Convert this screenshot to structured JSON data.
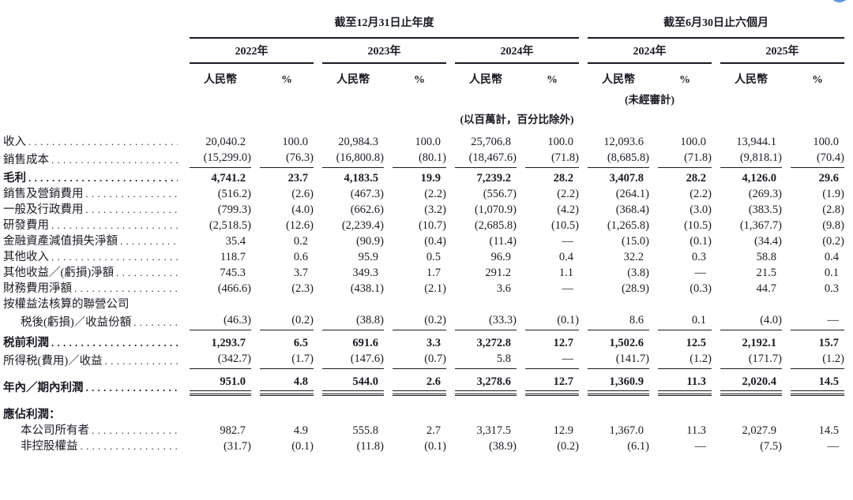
{
  "page": {
    "background": "#ffffff",
    "text_color": "#1a1a24",
    "accent_blue": "#5a96dd"
  },
  "table": {
    "col_groups": [
      {
        "period": "截至12月31日止年度",
        "years": [
          "2022年",
          "2023年",
          "2024年"
        ]
      },
      {
        "period": "截至6月30日止六個月",
        "years": [
          "2024年",
          "2025年"
        ]
      }
    ],
    "sub_headers": {
      "currency": "人民幣",
      "percent": "%"
    },
    "unaudited_note": "(未經審計)",
    "unit_note": "(以百萬計，百分比除外)",
    "rows": [
      {
        "label": "收入",
        "values": [
          "20,040.2",
          "100.0",
          "20,984.3",
          "100.0",
          "25,706.8",
          "100.0",
          "12,093.6",
          "100.0",
          "13,944.1",
          "100.0"
        ]
      },
      {
        "label": "銷售成本",
        "rule_below": "single",
        "values": [
          "(15,299.0)",
          "(76.3)",
          "(16,800.8)",
          "(80.1)",
          "(18,467.6)",
          "(71.8)",
          "(8,685.8)",
          "(71.8)",
          "(9,818.1)",
          "(70.4)"
        ]
      },
      {
        "label": "毛利",
        "style": "bold",
        "gap_above": 3,
        "values": [
          "4,741.2",
          "23.7",
          "4,183.5",
          "19.9",
          "7,239.2",
          "28.2",
          "3,407.8",
          "28.2",
          "4,126.0",
          "29.6"
        ]
      },
      {
        "label": "銷售及營銷費用",
        "values": [
          "(516.2)",
          "(2.6)",
          "(467.3)",
          "(2.2)",
          "(556.7)",
          "(2.2)",
          "(264.1)",
          "(2.2)",
          "(269.3)",
          "(1.9)"
        ]
      },
      {
        "label": "一般及行政費用",
        "values": [
          "(799.3)",
          "(4.0)",
          "(662.6)",
          "(3.2)",
          "(1,070.9)",
          "(4.2)",
          "(368.4)",
          "(3.0)",
          "(383.5)",
          "(2.8)"
        ]
      },
      {
        "label": "研發費用",
        "values": [
          "(2,518.5)",
          "(12.6)",
          "(2,239.4)",
          "(10.7)",
          "(2,685.8)",
          "(10.5)",
          "(1,265.8)",
          "(10.5)",
          "(1,367.7)",
          "(9.8)"
        ]
      },
      {
        "label": "金融資產減值損失淨額",
        "values": [
          "35.4",
          "0.2",
          "(90.9)",
          "(0.4)",
          "(11.4)",
          "—",
          "(15.0)",
          "(0.1)",
          "(34.4)",
          "(0.2)"
        ]
      },
      {
        "label": "其他收入",
        "values": [
          "118.7",
          "0.6",
          "95.9",
          "0.5",
          "96.9",
          "0.4",
          "32.2",
          "0.3",
          "58.8",
          "0.4"
        ]
      },
      {
        "label": "其他收益／(虧損)淨額",
        "values": [
          "745.3",
          "3.7",
          "349.3",
          "1.7",
          "291.2",
          "1.1",
          "(3.8)",
          "—",
          "21.5",
          "0.1"
        ]
      },
      {
        "label": "財務費用淨額",
        "values": [
          "(466.6)",
          "(2.3)",
          "(438.1)",
          "(2.1)",
          "3.6",
          "—",
          "(28.9)",
          "(0.3)",
          "44.7",
          "0.3"
        ]
      },
      {
        "label": "按權益法核算的聯營公司",
        "values": []
      },
      {
        "label": "税後(虧損)／收益份額",
        "indent": 1,
        "rule_below": "single",
        "values": [
          "(46.3)",
          "(0.2)",
          "(38.8)",
          "(0.2)",
          "(33.3)",
          "(0.1)",
          "8.6",
          "0.1",
          "(4.0)",
          "—"
        ]
      },
      {
        "label": "税前利潤",
        "style": "bold",
        "gap_above": 6,
        "values": [
          "1,293.7",
          "6.5",
          "691.6",
          "3.3",
          "3,272.8",
          "12.7",
          "1,502.6",
          "12.5",
          "2,192.1",
          "15.7"
        ]
      },
      {
        "label": "所得税(費用)／收益",
        "rule_below": "single",
        "values": [
          "(342.7)",
          "(1.7)",
          "(147.6)",
          "(0.7)",
          "5.8",
          "—",
          "(141.7)",
          "(1.2)",
          "(171.7)",
          "(1.2)"
        ]
      },
      {
        "label": "年內／期內利潤",
        "style": "bold",
        "gap_above": 6,
        "rule_below": "double",
        "values": [
          "951.0",
          "4.8",
          "544.0",
          "2.6",
          "3,278.6",
          "12.7",
          "1,360.9",
          "11.3",
          "2,020.4",
          "14.5"
        ]
      },
      {
        "label": "應佔利潤：",
        "style": "bold",
        "gap_above": 14,
        "values": []
      },
      {
        "label": "本公司所有者",
        "indent": 1,
        "values": [
          "982.7",
          "4.9",
          "555.8",
          "2.7",
          "3,317.5",
          "12.9",
          "1,367.0",
          "11.3",
          "2,027.9",
          "14.5"
        ]
      },
      {
        "label": "非控股權益",
        "indent": 1,
        "values": [
          "(31.7)",
          "(0.1)",
          "(11.8)",
          "(0.1)",
          "(38.9)",
          "(0.2)",
          "(6.1)",
          "—",
          "(7.5)",
          "—"
        ]
      }
    ]
  }
}
